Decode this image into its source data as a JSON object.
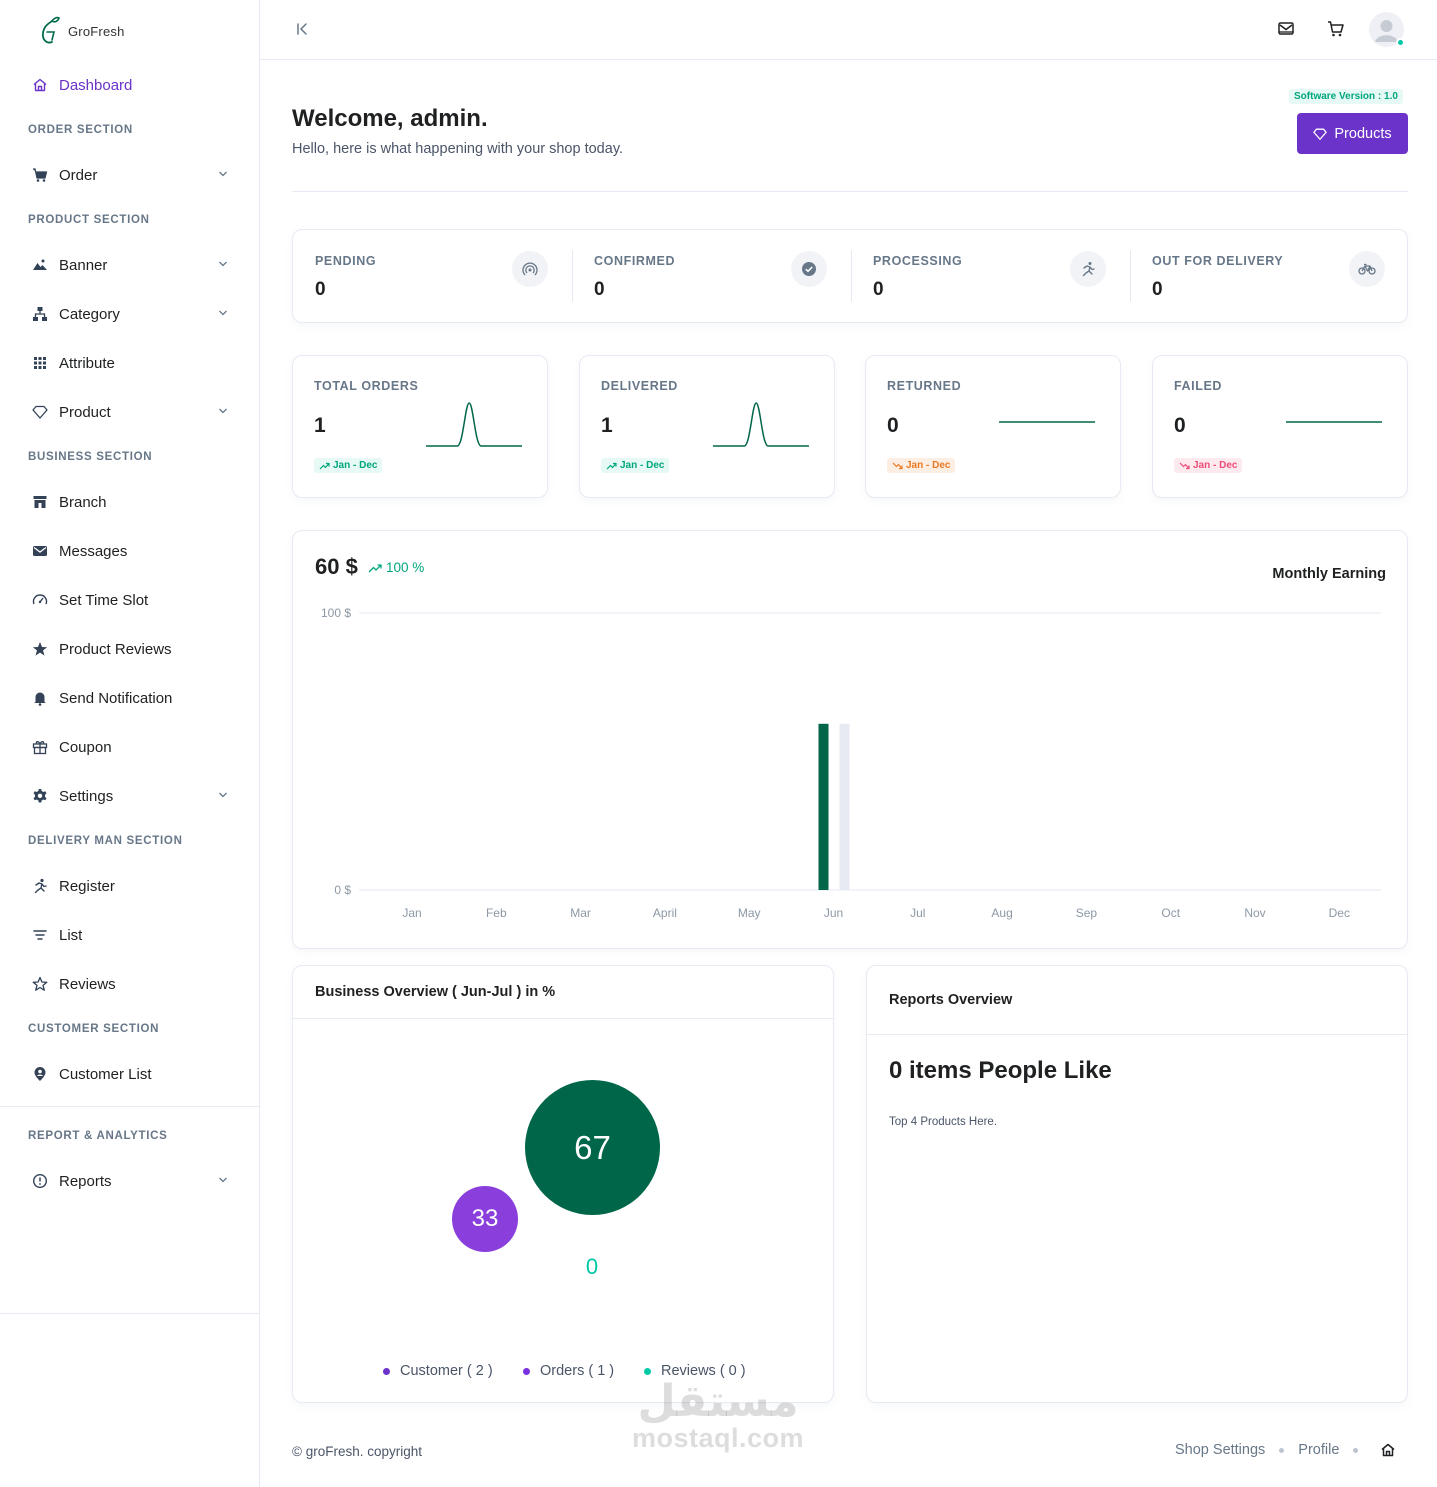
{
  "brand": {
    "name": "GroFresh"
  },
  "sidebar": {
    "dashboard": "Dashboard",
    "sections": {
      "order": "ORDER SECTION",
      "product": "PRODUCT SECTION",
      "business": "BUSINESS SECTION",
      "delivery": "DELIVERY MAN SECTION",
      "customer": "CUSTOMER SECTION",
      "report": "REPORT & ANALYTICS"
    },
    "items": {
      "order": "Order",
      "banner": "Banner",
      "category": "Category",
      "attribute": "Attribute",
      "product": "Product",
      "branch": "Branch",
      "messages": "Messages",
      "time_slot": "Set Time Slot",
      "product_reviews": "Product Reviews",
      "send_notification": "Send Notification",
      "coupon": "Coupon",
      "settings": "Settings",
      "register": "Register",
      "list": "List",
      "reviews": "Reviews",
      "customer_list": "Customer List",
      "reports": "Reports"
    }
  },
  "header": {
    "welcome": "Welcome, admin.",
    "subtitle": "Hello, here is what happening with your shop today.",
    "version": "Software Version : 1.0",
    "products_button": "Products"
  },
  "order_status": [
    {
      "label": "PENDING",
      "value": "0",
      "icon": "signal-icon"
    },
    {
      "label": "CONFIRMED",
      "value": "0",
      "icon": "check-circle-icon"
    },
    {
      "label": "PROCESSING",
      "value": "0",
      "icon": "running-icon"
    },
    {
      "label": "OUT FOR DELIVERY",
      "value": "0",
      "icon": "bicycle-icon"
    }
  ],
  "order_stats": [
    {
      "label": "TOTAL ORDERS",
      "value": "1",
      "range": "Jan - Dec",
      "trend": "up",
      "spark": [
        0,
        0,
        0,
        0,
        0,
        1,
        0,
        0,
        0,
        0,
        0,
        0
      ]
    },
    {
      "label": "DELIVERED",
      "value": "1",
      "range": "Jan - Dec",
      "trend": "up",
      "spark": [
        0,
        0,
        0,
        0,
        0,
        1,
        0,
        0,
        0,
        0,
        0,
        0
      ]
    },
    {
      "label": "RETURNED",
      "value": "0",
      "range": "Jan - Dec",
      "trend": "down-orange",
      "spark": [
        0,
        0,
        0,
        0,
        0,
        0,
        0,
        0,
        0,
        0,
        0,
        0
      ]
    },
    {
      "label": "FAILED",
      "value": "0",
      "range": "Jan - Dec",
      "trend": "down-red",
      "spark": [
        0,
        0,
        0,
        0,
        0,
        0,
        0,
        0,
        0,
        0,
        0,
        0
      ]
    }
  ],
  "earning": {
    "value": "60 $",
    "change": "100 %",
    "title": "Monthly Earning"
  },
  "chart_data": {
    "type": "bar",
    "categories": [
      "Jan",
      "Feb",
      "Mar",
      "April",
      "May",
      "Jun",
      "Jul",
      "Aug",
      "Sep",
      "Oct",
      "Nov",
      "Dec"
    ],
    "series": [
      {
        "values": [
          0,
          0,
          0,
          0,
          0,
          60,
          0,
          0,
          0,
          0,
          0,
          0
        ],
        "color": "#00664a"
      },
      {
        "values": [
          0,
          0,
          0,
          0,
          0,
          60,
          0,
          0,
          0,
          0,
          0,
          0
        ],
        "color": "#e7eaf3"
      }
    ],
    "ylim": [
      0,
      100
    ],
    "y_tick_labels": [
      "100 $",
      "0 $"
    ],
    "grid": true
  },
  "business_overview": {
    "title": "Business Overview ( Jun-Jul ) in %",
    "bubbles": [
      {
        "value": "67",
        "color": "#00664a"
      },
      {
        "value": "33",
        "color": "#8a3fdc"
      },
      {
        "value": "0",
        "color": "#00c9a7"
      }
    ],
    "legend": [
      {
        "label": "Customer ( 2 )",
        "color": "#6b33c9"
      },
      {
        "label": "Orders ( 1 )",
        "color": "#7a2fe0"
      },
      {
        "label": "Reviews ( 0 )",
        "color": "#00c9a7"
      }
    ]
  },
  "reports_overview": {
    "title": "Reports Overview",
    "headline": "0 items People Like",
    "note": "Top 4 Products Here."
  },
  "footer": {
    "copyright": "© groFresh. copyright",
    "links": [
      "Shop Settings",
      "Profile"
    ]
  },
  "watermark": {
    "arabic": "مستقل",
    "latin": "mostaql.com"
  }
}
